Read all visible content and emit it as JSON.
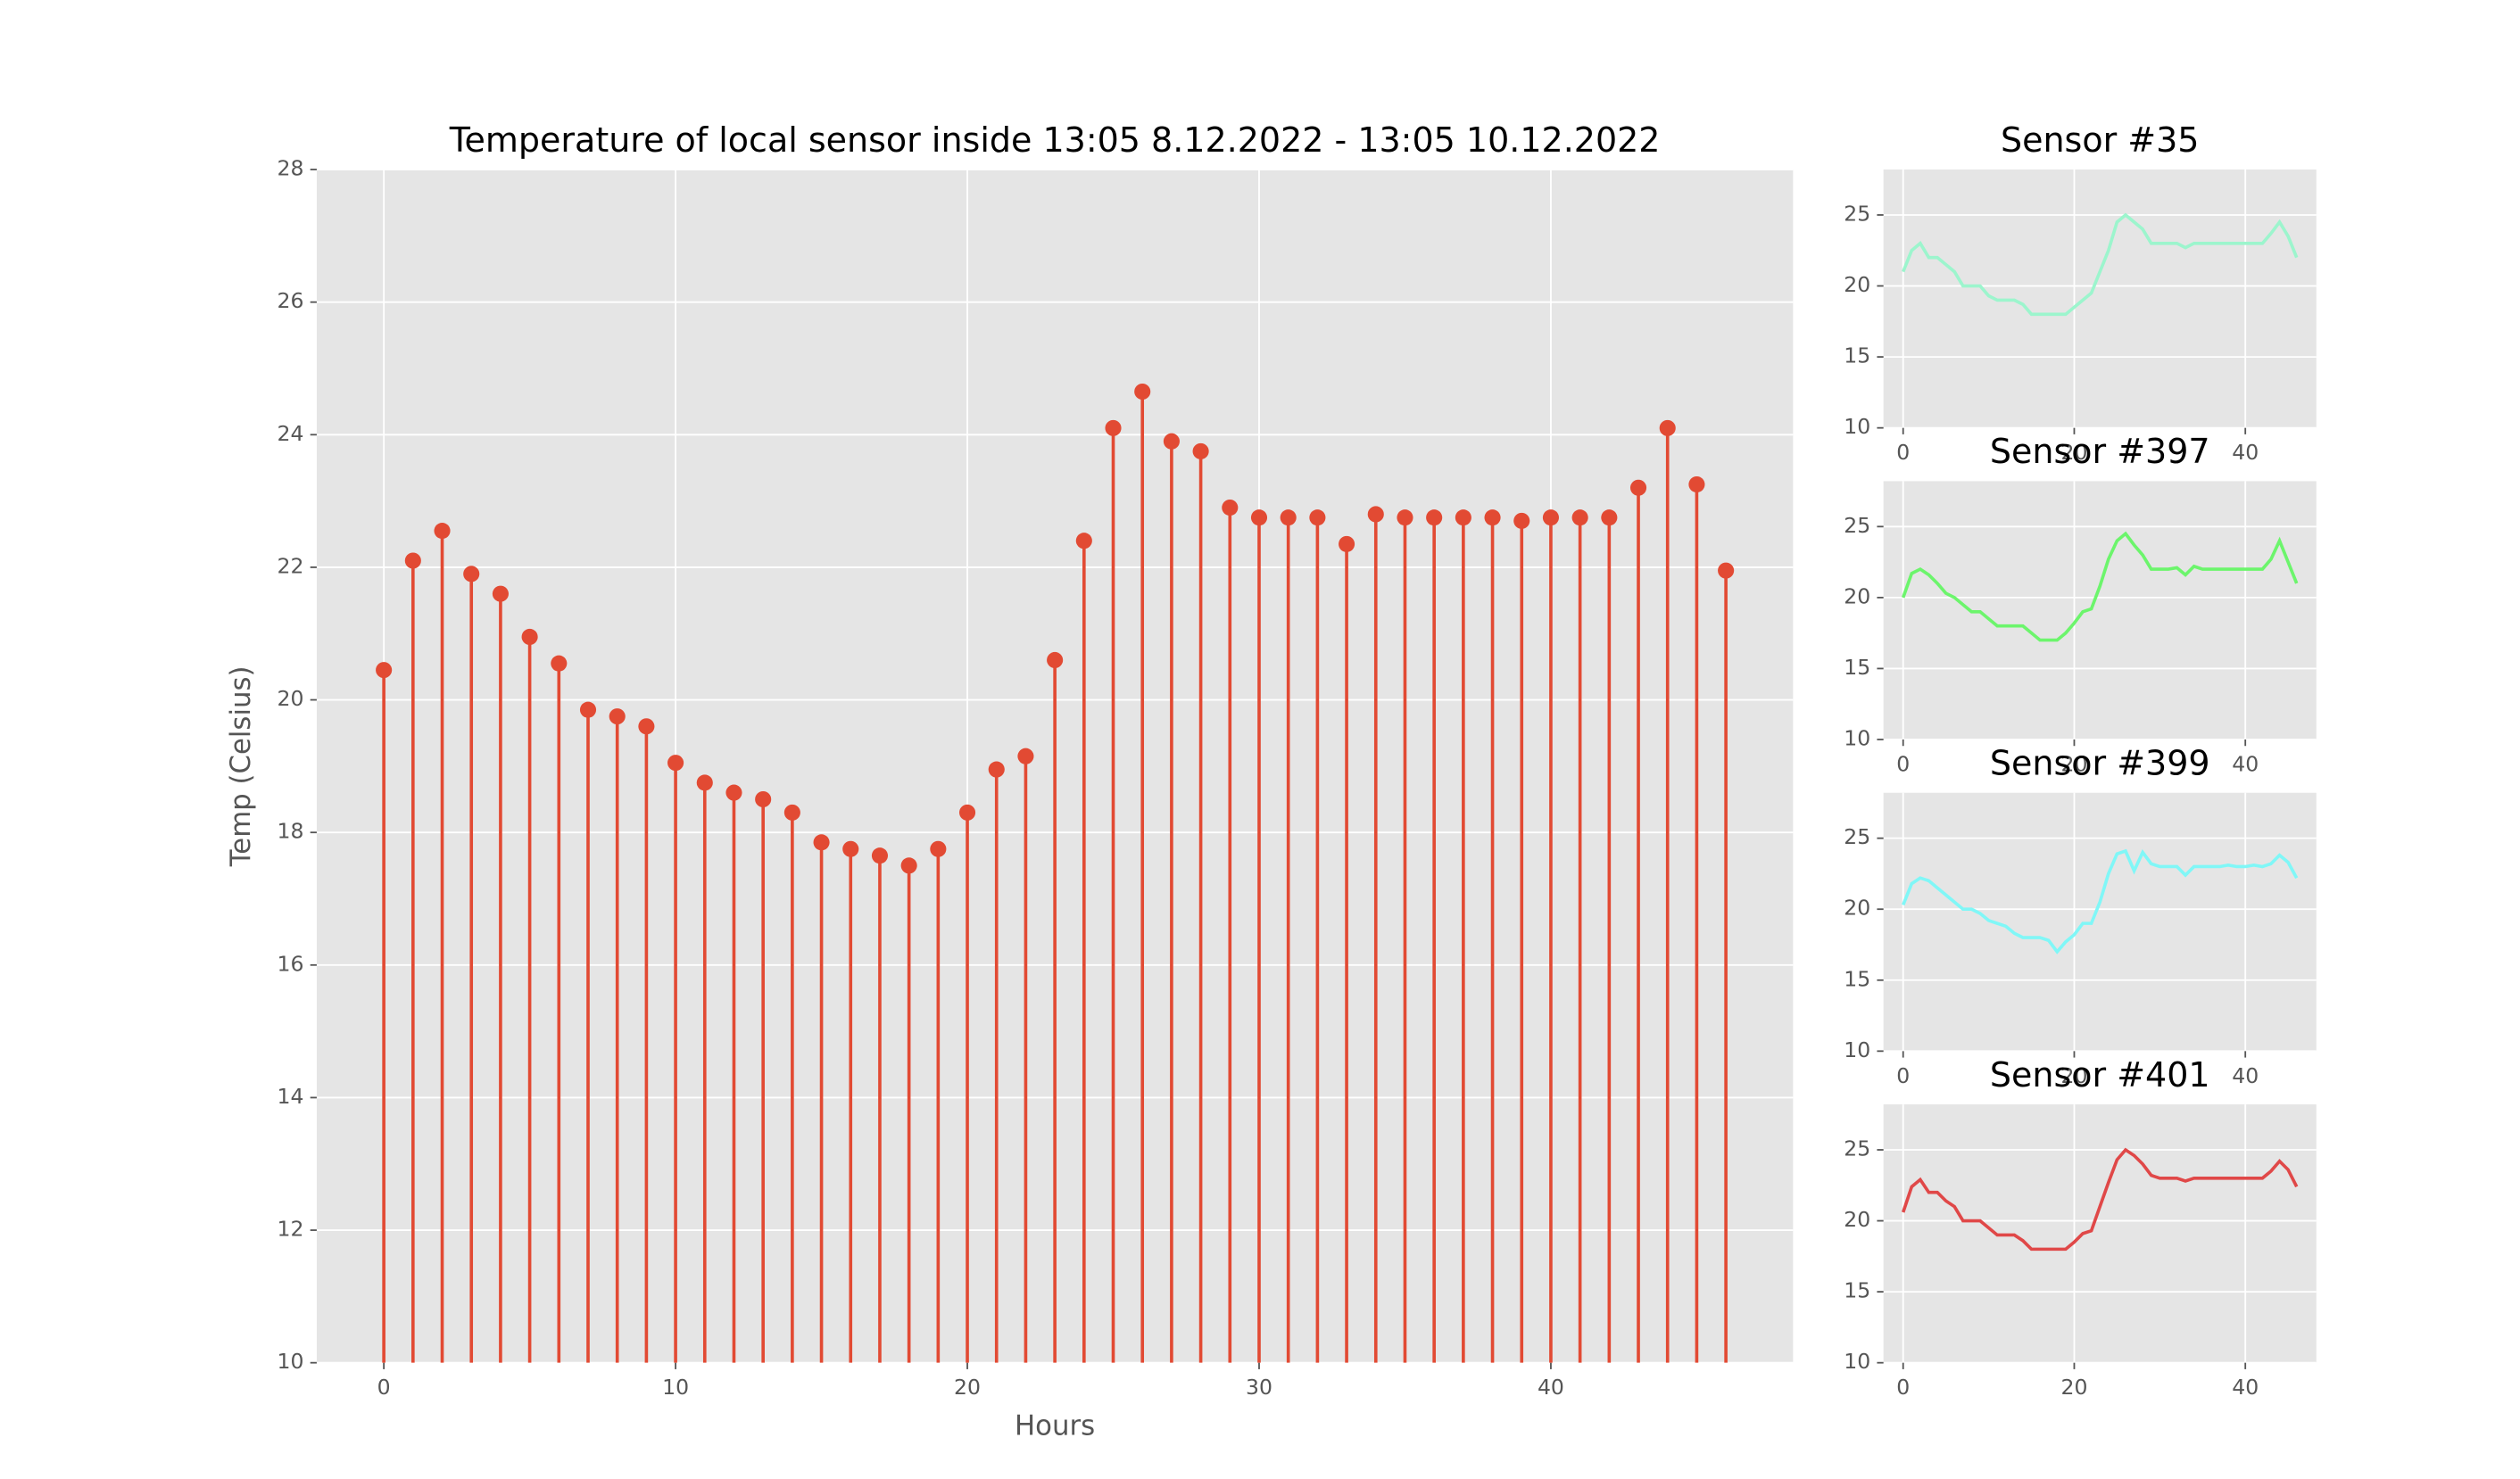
{
  "chart_data": [
    {
      "type": "stem",
      "title": "Temperature of local sensor inside 13:05 8.12.2022 - 13:05 10.12.2022",
      "xlabel": "Hours",
      "ylabel": "Temp (Celsius)",
      "color": "#e24a33",
      "grid": true,
      "x": [
        0,
        1,
        2,
        3,
        4,
        5,
        6,
        7,
        8,
        9,
        10,
        11,
        12,
        13,
        14,
        15,
        16,
        17,
        18,
        19,
        20,
        21,
        22,
        23,
        24,
        25,
        26,
        27,
        28,
        29,
        30,
        31,
        32,
        33,
        34,
        35,
        36,
        37,
        38,
        39,
        40,
        41,
        42,
        43,
        44,
        45,
        46
      ],
      "values": [
        20.45,
        22.1,
        22.55,
        21.9,
        21.6,
        20.95,
        20.55,
        19.85,
        19.75,
        19.6,
        19.05,
        18.75,
        18.6,
        18.5,
        18.3,
        17.85,
        17.75,
        17.65,
        17.5,
        17.75,
        18.3,
        18.95,
        19.15,
        20.6,
        22.4,
        24.1,
        24.65,
        23.9,
        23.75,
        22.9,
        22.75,
        22.75,
        22.75,
        22.35,
        22.8,
        22.75,
        22.75,
        22.75,
        22.75,
        22.7,
        22.75,
        22.75,
        22.75,
        23.2,
        24.1,
        23.25,
        21.95
      ],
      "xlim": [
        -2.3,
        48.3
      ],
      "xticks": [
        0,
        10,
        20,
        30,
        40
      ],
      "ylim": [
        10,
        28
      ],
      "yticks": [
        10,
        12,
        14,
        16,
        18,
        20,
        22,
        24,
        26,
        28
      ]
    },
    {
      "type": "line",
      "title": "Sensor #35",
      "color": "#9cf5cd",
      "grid": true,
      "x": [
        0,
        1,
        2,
        3,
        4,
        5,
        6,
        7,
        8,
        9,
        10,
        11,
        12,
        13,
        14,
        15,
        16,
        17,
        18,
        19,
        20,
        21,
        22,
        23,
        24,
        25,
        26,
        27,
        28,
        29,
        30,
        31,
        32,
        33,
        34,
        35,
        36,
        37,
        38,
        39,
        40,
        41,
        42,
        43,
        44,
        45,
        46
      ],
      "values": [
        21,
        22.5,
        23,
        22,
        22,
        21.5,
        21,
        20,
        20,
        20,
        19.3,
        19,
        19,
        19,
        18.7,
        18,
        18,
        18,
        18,
        18,
        18.5,
        19,
        19.5,
        21,
        22.5,
        24.5,
        25,
        24.5,
        24,
        23,
        23,
        23,
        23,
        22.7,
        23,
        23,
        23,
        23,
        23,
        23,
        23,
        23,
        23,
        23.7,
        24.5,
        23.5,
        22
      ],
      "xlim": [
        -2.3,
        48.3
      ],
      "xticks": [
        0,
        20,
        40
      ],
      "ylim": [
        10,
        28.2
      ],
      "yticks": [
        10,
        15,
        20,
        25
      ]
    },
    {
      "type": "line",
      "title": "Sensor #397",
      "color": "#6cf56c",
      "grid": true,
      "x": [
        0,
        1,
        2,
        3,
        4,
        5,
        6,
        7,
        8,
        9,
        10,
        11,
        12,
        13,
        14,
        15,
        16,
        17,
        18,
        19,
        20,
        21,
        22,
        23,
        24,
        25,
        26,
        27,
        28,
        29,
        30,
        31,
        32,
        33,
        34,
        35,
        36,
        37,
        38,
        39,
        40,
        41,
        42,
        43,
        44,
        45,
        46
      ],
      "values": [
        20,
        21.7,
        22,
        21.6,
        21,
        20.3,
        20,
        19.5,
        19,
        19,
        18.5,
        18,
        18,
        18,
        18,
        17.5,
        17,
        17,
        17,
        17.5,
        18.2,
        19,
        19.2,
        20.8,
        22.7,
        24,
        24.5,
        23.7,
        23,
        22,
        22,
        22,
        22.1,
        21.6,
        22.2,
        22,
        22,
        22,
        22,
        22,
        22,
        22,
        22,
        22.7,
        24,
        22.5,
        21
      ],
      "xlim": [
        -2.3,
        48.3
      ],
      "xticks": [
        0,
        20,
        40
      ],
      "ylim": [
        10,
        28.2
      ],
      "yticks": [
        10,
        15,
        20,
        25
      ]
    },
    {
      "type": "line",
      "title": "Sensor #399",
      "color": "#80f7f7",
      "grid": true,
      "x": [
        0,
        1,
        2,
        3,
        4,
        5,
        6,
        7,
        8,
        9,
        10,
        11,
        12,
        13,
        14,
        15,
        16,
        17,
        18,
        19,
        20,
        21,
        22,
        23,
        24,
        25,
        26,
        27,
        28,
        29,
        30,
        31,
        32,
        33,
        34,
        35,
        36,
        37,
        38,
        39,
        40,
        41,
        42,
        43,
        44,
        45,
        46
      ],
      "values": [
        20.3,
        21.8,
        22.2,
        22,
        21.5,
        21,
        20.5,
        20,
        20,
        19.7,
        19.2,
        19,
        18.8,
        18.3,
        18,
        18,
        18,
        17.8,
        17,
        17.7,
        18.2,
        19,
        19,
        20.5,
        22.5,
        23.9,
        24.1,
        22.7,
        24,
        23.2,
        23,
        23,
        23,
        22.4,
        23,
        23,
        23,
        23,
        23.1,
        23,
        23,
        23.1,
        23,
        23.2,
        23.8,
        23.3,
        22.2
      ],
      "xlim": [
        -2.3,
        48.3
      ],
      "xticks": [
        0,
        20,
        40
      ],
      "ylim": [
        10,
        28.2
      ],
      "yticks": [
        10,
        15,
        20,
        25
      ]
    },
    {
      "type": "line",
      "title": "Sensor #401",
      "color": "#e04848",
      "grid": true,
      "x": [
        0,
        1,
        2,
        3,
        4,
        5,
        6,
        7,
        8,
        9,
        10,
        11,
        12,
        13,
        14,
        15,
        16,
        17,
        18,
        19,
        20,
        21,
        22,
        23,
        24,
        25,
        26,
        27,
        28,
        29,
        30,
        31,
        32,
        33,
        34,
        35,
        36,
        37,
        38,
        39,
        40,
        41,
        42,
        43,
        44,
        45,
        46
      ],
      "values": [
        20.6,
        22.4,
        22.9,
        22,
        22,
        21.4,
        21,
        20,
        20,
        20,
        19.5,
        19,
        19,
        19,
        18.6,
        18,
        18,
        18,
        18,
        18,
        18.5,
        19.1,
        19.3,
        21,
        22.7,
        24.3,
        25,
        24.6,
        24,
        23.2,
        23,
        23,
        23,
        22.8,
        23,
        23,
        23,
        23,
        23,
        23,
        23,
        23,
        23,
        23.5,
        24.2,
        23.6,
        22.4
      ],
      "xlim": [
        -2.3,
        48.3
      ],
      "xticks": [
        0,
        20,
        40
      ],
      "ylim": [
        10,
        28.2
      ],
      "yticks": [
        10,
        15,
        20,
        25
      ]
    }
  ]
}
